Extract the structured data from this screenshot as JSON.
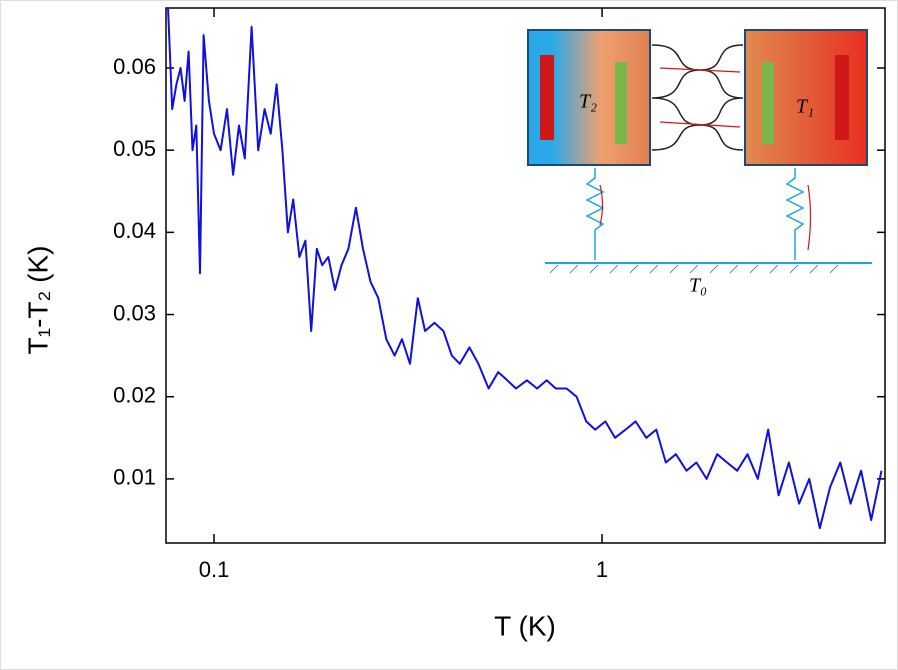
{
  "chart_data": {
    "type": "line",
    "x_label": "T (K)",
    "y_label": "T₁-T₂ (K)",
    "xscale": "log",
    "xlim": [
      0.0752,
      5.36
    ],
    "ylim": [
      0.0022,
      0.0673
    ],
    "xticks": [
      0.1,
      1
    ],
    "yticks": [
      0.01,
      0.02,
      0.03,
      0.04,
      0.05,
      0.06
    ],
    "inset_labels": [
      "T₂",
      "T₁",
      "T₀"
    ],
    "x": [
      0.076,
      0.078,
      0.08,
      0.082,
      0.084,
      0.086,
      0.088,
      0.09,
      0.092,
      0.094,
      0.097,
      0.1,
      0.104,
      0.108,
      0.112,
      0.116,
      0.12,
      0.125,
      0.13,
      0.135,
      0.14,
      0.145,
      0.15,
      0.155,
      0.16,
      0.166,
      0.172,
      0.178,
      0.184,
      0.19,
      0.197,
      0.205,
      0.213,
      0.222,
      0.232,
      0.242,
      0.253,
      0.265,
      0.278,
      0.292,
      0.305,
      0.32,
      0.335,
      0.35,
      0.37,
      0.39,
      0.41,
      0.43,
      0.455,
      0.48,
      0.51,
      0.54,
      0.57,
      0.6,
      0.64,
      0.68,
      0.72,
      0.76,
      0.81,
      0.86,
      0.91,
      0.96,
      1.02,
      1.08,
      1.15,
      1.22,
      1.3,
      1.38,
      1.46,
      1.55,
      1.65,
      1.75,
      1.86,
      1.98,
      2.1,
      2.23,
      2.37,
      2.52,
      2.68,
      2.85,
      3.03,
      3.22,
      3.42,
      3.64,
      3.87,
      4.11,
      4.37,
      4.65,
      4.94,
      5.25
    ],
    "series": [
      {
        "color": "#1010e0",
        "values": [
          0.068,
          0.055,
          0.058,
          0.06,
          0.056,
          0.062,
          0.05,
          0.053,
          0.035,
          0.064,
          0.056,
          0.052,
          0.05,
          0.055,
          0.047,
          0.053,
          0.049,
          0.065,
          0.05,
          0.055,
          0.052,
          0.058,
          0.05,
          0.04,
          0.044,
          0.037,
          0.039,
          0.028,
          0.038,
          0.036,
          0.037,
          0.033,
          0.036,
          0.038,
          0.043,
          0.038,
          0.034,
          0.032,
          0.027,
          0.025,
          0.027,
          0.024,
          0.032,
          0.028,
          0.029,
          0.028,
          0.025,
          0.024,
          0.026,
          0.024,
          0.021,
          0.023,
          0.022,
          0.021,
          0.022,
          0.021,
          0.022,
          0.021,
          0.021,
          0.02,
          0.017,
          0.016,
          0.017,
          0.015,
          0.016,
          0.017,
          0.015,
          0.016,
          0.012,
          0.013,
          0.011,
          0.012,
          0.01,
          0.013,
          0.012,
          0.011,
          0.013,
          0.01,
          0.016,
          0.008,
          0.012,
          0.007,
          0.01,
          0.004,
          0.009,
          0.012,
          0.007,
          0.011,
          0.005,
          0.011
        ]
      }
    ]
  }
}
